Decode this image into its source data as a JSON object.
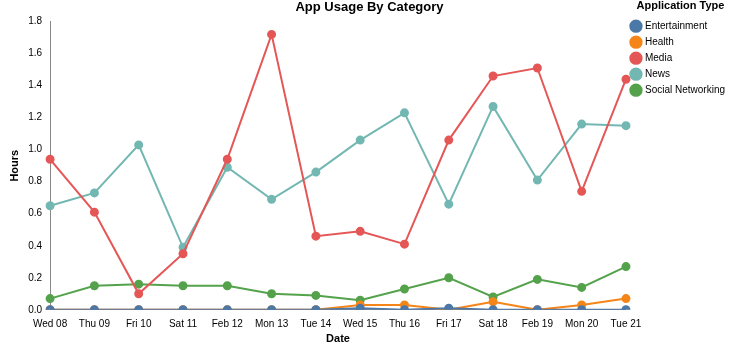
{
  "chart_data": {
    "type": "line",
    "title": "App Usage By Category",
    "x_label": "Date",
    "y_label": "Hours",
    "legend_title": "Application Type",
    "legend": "right",
    "grid": false,
    "marker": "circle",
    "categories": [
      "Wed 08",
      "Thu 09",
      "Fri 10",
      "Sat 11",
      "Feb 12",
      "Mon 13",
      "Tue 14",
      "Wed 15",
      "Thu 16",
      "Fri 17",
      "Sat 18",
      "Feb 19",
      "Mon 20",
      "Tue 21"
    ],
    "ylim": [
      0,
      1.8
    ],
    "yticks": [
      {
        "value": 0,
        "label": "0.0"
      },
      {
        "value": 0.2,
        "label": "0.2"
      },
      {
        "value": 0.4,
        "label": "0.4"
      },
      {
        "value": 0.6,
        "label": "0.6"
      },
      {
        "value": 0.8,
        "label": "0.8"
      },
      {
        "value": 1,
        "label": "1.0"
      },
      {
        "value": 1.2,
        "label": "1.2"
      },
      {
        "value": 1.4,
        "label": "1.4"
      },
      {
        "value": 1.6,
        "label": "1.6"
      },
      {
        "value": 1.8,
        "label": "1.8"
      }
    ],
    "series": [
      {
        "name": "Entertainment",
        "color": "#4c78a8",
        "values": [
          0,
          0,
          0,
          0,
          0,
          0,
          0,
          0.01,
          0,
          0.01,
          0,
          0,
          0,
          0
        ]
      },
      {
        "name": "Health",
        "color": "#f58518",
        "values": [
          0,
          0,
          0,
          0,
          0,
          0,
          0,
          0.03,
          0.03,
          0,
          0.05,
          0,
          0.03,
          0.07
        ]
      },
      {
        "name": "Media",
        "color": "#e45756",
        "values": [
          0.94,
          0.61,
          0.1,
          0.35,
          0.94,
          1.72,
          0.46,
          0.49,
          0.41,
          1.06,
          1.46,
          1.51,
          0.74,
          1.44
        ]
      },
      {
        "name": "News",
        "color": "#72b7b2",
        "values": [
          0.65,
          0.73,
          1.03,
          0.39,
          0.89,
          0.69,
          0.86,
          1.06,
          1.23,
          0.66,
          1.27,
          0.81,
          1.16,
          1.15
        ]
      },
      {
        "name": "Social Networking",
        "color": "#54a24b",
        "values": [
          0.07,
          0.15,
          0.16,
          0.15,
          0.15,
          0.1,
          0.09,
          0.06,
          0.13,
          0.2,
          0.08,
          0.19,
          0.14,
          0.27
        ]
      }
    ]
  }
}
